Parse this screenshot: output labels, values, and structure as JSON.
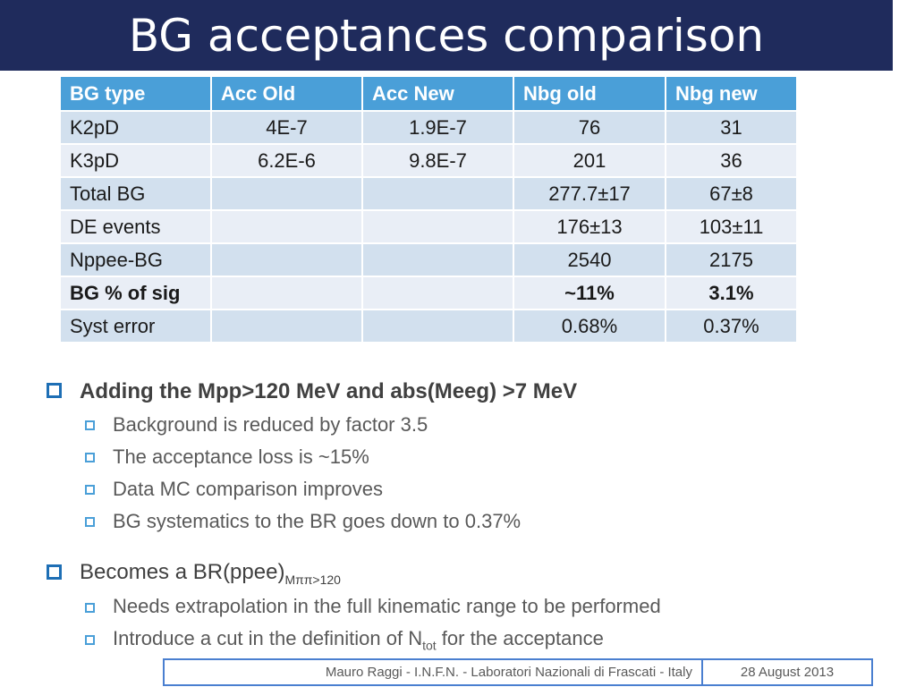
{
  "title": "BG acceptances comparison",
  "table": {
    "headers": [
      "BG type",
      "Acc Old",
      "Acc New",
      "Nbg old",
      "Nbg new"
    ],
    "rows": [
      [
        "K2pD",
        "4E-7",
        "1.9E-7",
        "76",
        "31"
      ],
      [
        "K3pD",
        "6.2E-6",
        "9.8E-7",
        "201",
        "36"
      ],
      [
        "Total BG",
        "",
        "",
        "277.7±17",
        "67±8"
      ],
      [
        "DE events",
        "",
        "",
        "176±13",
        "103±11"
      ],
      [
        "Nppee-BG",
        "",
        "",
        "2540",
        "2175"
      ],
      [
        "BG % of sig",
        "",
        "",
        "~11%",
        "3.1%"
      ],
      [
        "Syst error",
        "",
        "",
        "0.68%",
        "0.37%"
      ]
    ]
  },
  "bullets": {
    "b1": "Adding the Mpp>120 MeV and abs(Meeg) >7 MeV",
    "b1_sub": [
      "Background is reduced by factor 3.5",
      "The acceptance loss is ~15%",
      "Data MC comparison improves",
      "BG systematics to the BR goes down to 0.37%"
    ],
    "b2_main": "Becomes a BR(ppee)",
    "b2_subscript": "Mππ>120",
    "b2_sub1": "Needs extrapolation in the full kinematic range to be performed",
    "b2_sub2_pre": "Introduce a cut in the definition of N",
    "b2_sub2_subscript": "tot",
    "b2_sub2_post": " for the acceptance"
  },
  "footer": {
    "author": "Mauro Raggi - I.N.F.N. - Laboratori Nazionali di Frascati - Italy",
    "date": "28 August 2013"
  },
  "colors": {
    "title_bar": "#1f2b5c",
    "header_row": "#4a9fd8",
    "row_odd": "#d2e0ee",
    "row_even": "#e9eef6",
    "bullet": "#1e6fb5"
  }
}
